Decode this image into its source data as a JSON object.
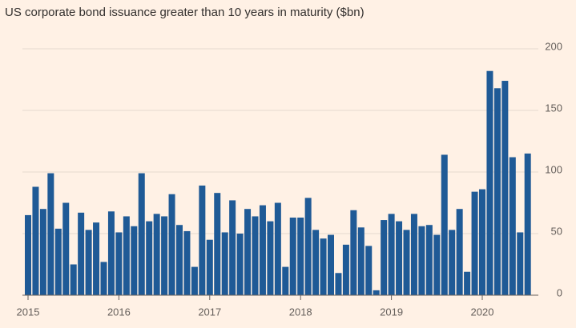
{
  "chart_data": {
    "type": "bar",
    "title": "US corporate bond issuance greater than 10 years in maturity ($bn)",
    "categories": [
      "2015",
      null,
      null,
      null,
      null,
      null,
      null,
      null,
      null,
      null,
      null,
      null,
      "2016",
      null,
      null,
      null,
      null,
      null,
      null,
      null,
      null,
      null,
      null,
      null,
      "2017",
      null,
      null,
      null,
      null,
      null,
      null,
      null,
      null,
      null,
      null,
      null,
      "2018",
      null,
      null,
      null,
      null,
      null,
      null,
      null,
      null,
      null,
      null,
      null,
      "2019",
      null,
      null,
      null,
      null,
      null,
      null,
      null,
      null,
      null,
      null,
      null,
      "2020",
      null,
      null,
      null,
      null,
      null,
      null
    ],
    "values": [
      65,
      88,
      70,
      99,
      54,
      75,
      25,
      67,
      53,
      59,
      27,
      68,
      51,
      64,
      56,
      99,
      60,
      66,
      64,
      82,
      57,
      52,
      23,
      89,
      45,
      83,
      51,
      77,
      50,
      70,
      64,
      73,
      60,
      75,
      23,
      63,
      63,
      79,
      53,
      46,
      49,
      18,
      41,
      69,
      55,
      40,
      4,
      61,
      66,
      60,
      53,
      66,
      56,
      57,
      49,
      114,
      53,
      70,
      19,
      84,
      86,
      182,
      168,
      174,
      112,
      51,
      115
    ],
    "color": "#1f5a96",
    "ylim": [
      0,
      200
    ],
    "yticks": [
      0,
      50,
      100,
      150,
      200
    ],
    "grid": true
  }
}
